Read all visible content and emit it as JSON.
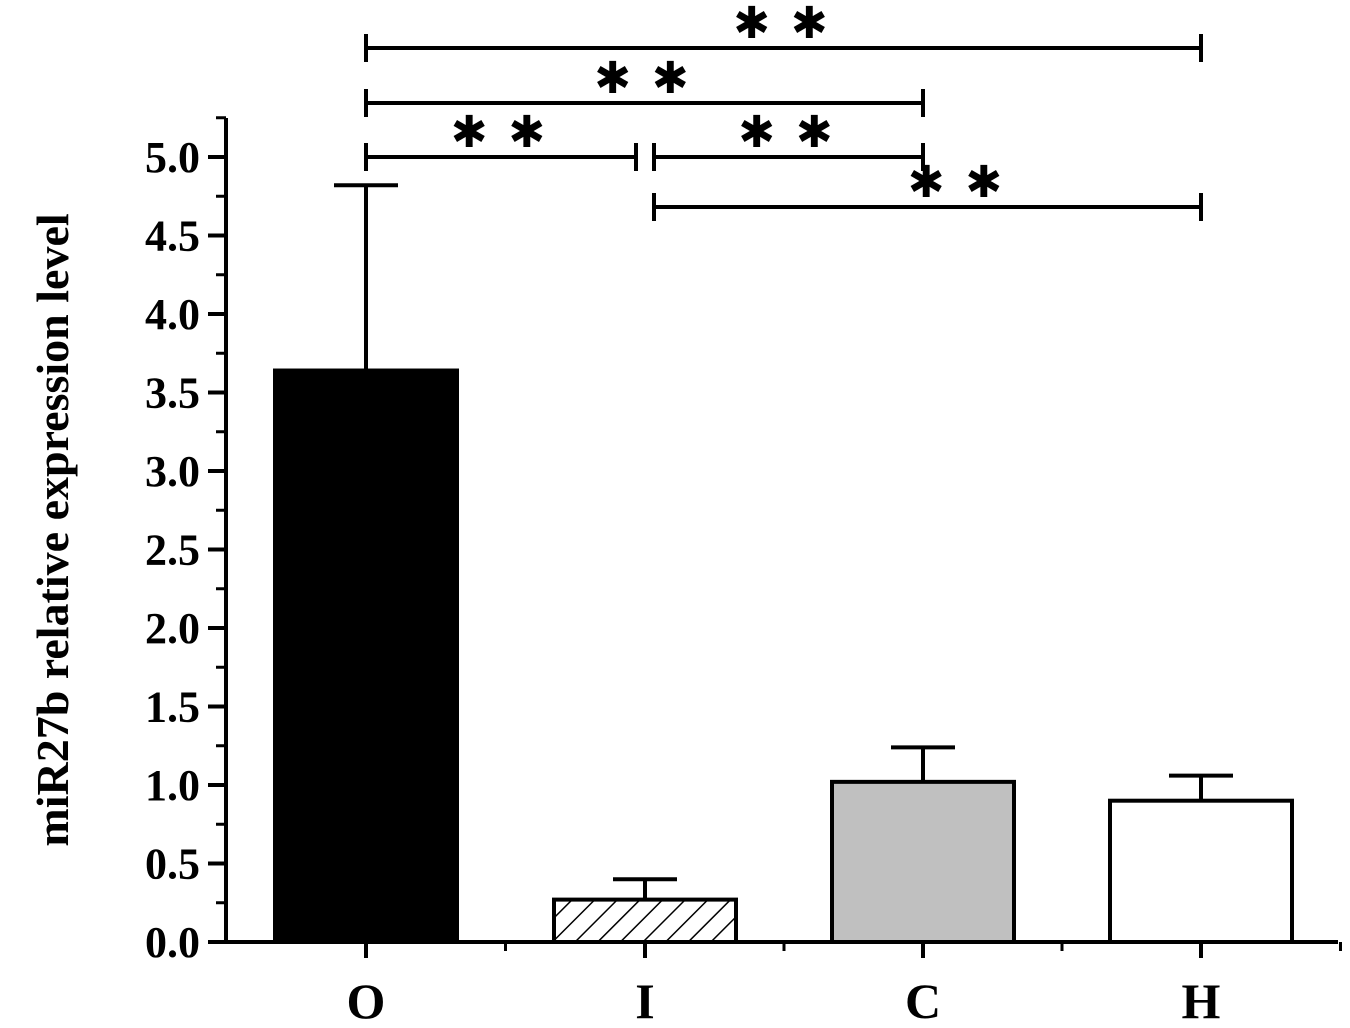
{
  "chart_data": {
    "type": "bar",
    "title": "",
    "xlabel": "",
    "ylabel": "miR27b relative expression level",
    "ylim": [
      0,
      5.0
    ],
    "yticks": [
      "0.0",
      "0.5",
      "1.0",
      "1.5",
      "2.0",
      "2.5",
      "3.0",
      "3.5",
      "4.0",
      "4.5",
      "5.0"
    ],
    "categories": [
      "O",
      "I",
      "C",
      "H"
    ],
    "values": [
      3.64,
      0.27,
      1.02,
      0.9
    ],
    "errors": [
      1.18,
      0.13,
      0.22,
      0.16
    ],
    "fills": [
      "solid-black",
      "hatched",
      "gray",
      "white"
    ],
    "colors": {
      "black": "#000000",
      "gray": "#c0c0c0",
      "white": "#ffffff"
    },
    "significance": [
      {
        "from": "O",
        "to": "H",
        "label": "**"
      },
      {
        "from": "O",
        "to": "C",
        "label": "**"
      },
      {
        "from": "O",
        "to": "I",
        "label": "**"
      },
      {
        "from": "I",
        "to": "C",
        "label": "**"
      },
      {
        "from": "I",
        "to": "H",
        "label": "**"
      }
    ]
  }
}
